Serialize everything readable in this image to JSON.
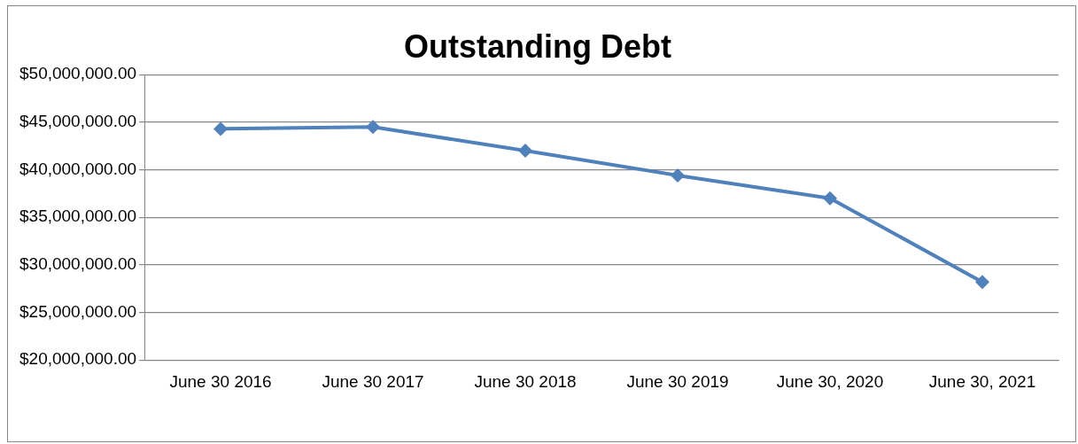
{
  "chart_data": {
    "type": "line",
    "title": "Outstanding Debt",
    "categories": [
      "June 30 2016",
      "June 30 2017",
      "June 30 2018",
      "June 30 2019",
      "June 30, 2020",
      "June 30, 2021"
    ],
    "series": [
      {
        "color": "#4f81bd",
        "values": [
          44300000,
          44500000,
          42000000,
          39400000,
          37000000,
          28200000
        ]
      }
    ],
    "ylim": [
      20000000,
      50000000
    ],
    "yticks": [
      {
        "value": 20000000,
        "label": "$20,000,000.00"
      },
      {
        "value": 25000000,
        "label": "$25,000,000.00"
      },
      {
        "value": 30000000,
        "label": "$30,000,000.00"
      },
      {
        "value": 35000000,
        "label": "$35,000,000.00"
      },
      {
        "value": 40000000,
        "label": "$40,000,000.00"
      },
      {
        "value": 45000000,
        "label": "$45,000,000.00"
      },
      {
        "value": 50000000,
        "label": "$50,000,000.00"
      }
    ],
    "grid": "y",
    "legend": false,
    "marker": "diamond",
    "line_style": "solid"
  }
}
